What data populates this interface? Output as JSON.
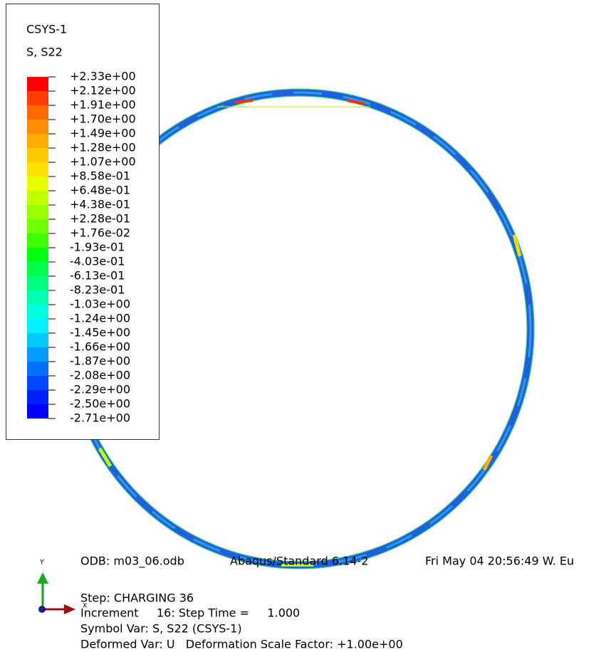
{
  "legend": {
    "title": "CSYS-1",
    "variable": "S, S22",
    "labels": [
      "+2.33e+00",
      "+2.12e+00",
      "+1.91e+00",
      "+1.70e+00",
      "+1.49e+00",
      "+1.28e+00",
      "+1.07e+00",
      "+8.58e-01",
      "+6.48e-01",
      "+4.38e-01",
      "+2.28e-01",
      "+1.76e-02",
      "-1.93e-01",
      "-4.03e-01",
      "-6.13e-01",
      "-8.23e-01",
      "-1.03e+00",
      "-1.24e+00",
      "-1.45e+00",
      "-1.66e+00",
      "-1.87e+00",
      "-2.08e+00",
      "-2.29e+00",
      "-2.50e+00",
      "-2.71e+00"
    ],
    "colors": [
      "#ff0000",
      "#ff3d00",
      "#ff6a00",
      "#ff8c00",
      "#ffab00",
      "#ffc800",
      "#ffe100",
      "#e6ff00",
      "#c0ff00",
      "#9aff00",
      "#6eff00",
      "#3fff00",
      "#00ff10",
      "#00ff4a",
      "#00ff80",
      "#00ffb0",
      "#00ffdd",
      "#00f0ff",
      "#00c8ff",
      "#009dff",
      "#0070ff",
      "#0046ff",
      "#0020ff",
      "#0000ff"
    ]
  },
  "triad": {
    "y_label": "Y",
    "x_label": "X"
  },
  "footer": {
    "odb": "ODB: m03_06.odb",
    "solver": "Abaqus/Standard 6.14-2",
    "date": "Fri May 04 20:56:49 W. Eu",
    "step": "Step: CHARGING 36",
    "increment": "Increment     16: Step Time =     1.000",
    "symbol_var": "Symbol Var: S, S22 (CSYS-1)",
    "deformed_var": "Deformed Var: U   Deformation Scale Factor: +1.00e+00"
  }
}
